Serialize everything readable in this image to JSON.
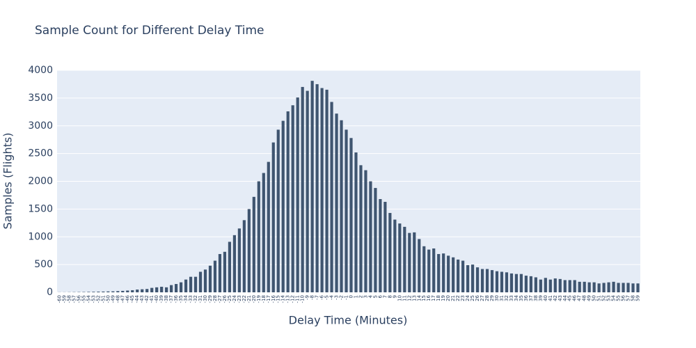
{
  "chart_data": {
    "type": "bar",
    "title": "Sample Count for Different Delay Time",
    "x_label": "Delay Time (Minutes)",
    "y_label": "Samples (Flights)",
    "categories": [
      "-60",
      "-59",
      "-58",
      "-57",
      "-56",
      "-55",
      "-54",
      "-53",
      "-52",
      "-51",
      "-50",
      "-49",
      "-48",
      "-47",
      "-46",
      "-45",
      "-44",
      "-43",
      "-42",
      "-41",
      "-40",
      "-39",
      "-38",
      "-37",
      "-36",
      "-35",
      "-34",
      "-33",
      "-32",
      "-31",
      "-30",
      "-29",
      "-28",
      "-27",
      "-26",
      "-25",
      "-24",
      "-23",
      "-22",
      "-21",
      "-20",
      "-19",
      "-18",
      "-17",
      "-16",
      "-15",
      "-14",
      "-13",
      "-12",
      "-11",
      "-10",
      "-9",
      "-8",
      "-7",
      "-6",
      "-5",
      "-4",
      "-3",
      "-2",
      "-1",
      "0",
      "1",
      "2",
      "3",
      "4",
      "5",
      "6",
      "7",
      "8",
      "9",
      "10",
      "11",
      "12",
      "13",
      "14",
      "15",
      "16",
      "17",
      "18",
      "19",
      "20",
      "21",
      "22",
      "23",
      "24",
      "25",
      "26",
      "27",
      "28",
      "29",
      "30",
      "31",
      "32",
      "33",
      "34",
      "35",
      "36",
      "37",
      "38",
      "39",
      "40",
      "41",
      "42",
      "43",
      "44",
      "45",
      "46",
      "47",
      "48",
      "49",
      "50",
      "51",
      "52",
      "53",
      "54",
      "55",
      "56",
      "57",
      "58",
      "59"
    ],
    "values": [
      2,
      2,
      3,
      4,
      5,
      6,
      8,
      10,
      12,
      14,
      16,
      18,
      22,
      26,
      32,
      38,
      50,
      55,
      60,
      80,
      90,
      100,
      90,
      130,
      150,
      180,
      230,
      280,
      280,
      370,
      410,
      480,
      570,
      690,
      730,
      910,
      1030,
      1150,
      1300,
      1500,
      1720,
      2000,
      2150,
      2350,
      2700,
      2930,
      3090,
      3260,
      3370,
      3510,
      3700,
      3630,
      3810,
      3750,
      3680,
      3650,
      3430,
      3220,
      3100,
      2930,
      2780,
      2520,
      2290,
      2200,
      2000,
      1880,
      1680,
      1630,
      1430,
      1310,
      1240,
      1180,
      1070,
      1080,
      960,
      830,
      770,
      790,
      690,
      700,
      660,
      630,
      590,
      570,
      490,
      500,
      450,
      420,
      420,
      400,
      380,
      370,
      360,
      340,
      330,
      330,
      300,
      290,
      270,
      230,
      260,
      230,
      250,
      240,
      220,
      220,
      220,
      190,
      190,
      180,
      180,
      160,
      170,
      180,
      190,
      170,
      170,
      170,
      160,
      160
    ],
    "color": "#3f5570",
    "ylim": [
      0,
      4000
    ],
    "yticks": [
      0,
      500,
      1000,
      1500,
      2000,
      2500,
      3000,
      3500,
      4000
    ],
    "grid": true
  }
}
